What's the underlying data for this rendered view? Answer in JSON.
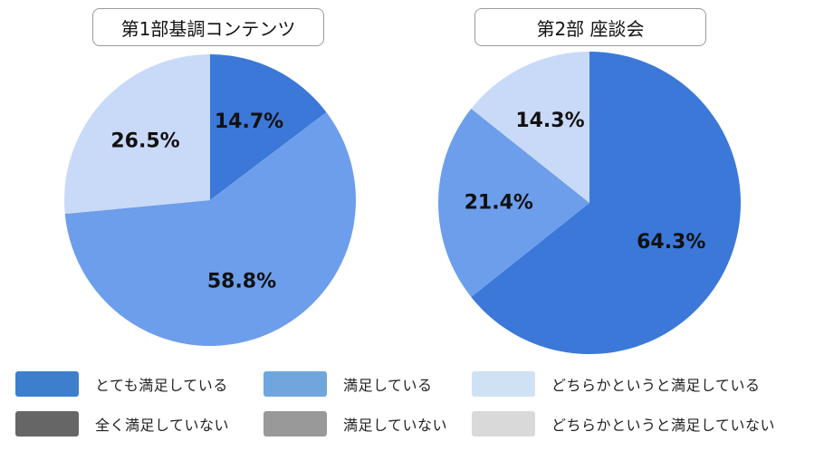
{
  "chart_data": [
    {
      "type": "pie",
      "title": "第1部基調コンテンツ",
      "slices": [
        {
          "label": "とても満足している",
          "value": 14.7,
          "value_label": "14.7%",
          "color": "#3b78d8"
        },
        {
          "label": "満足している",
          "value": 58.8,
          "value_label": "58.8%",
          "color": "#6d9eeb"
        },
        {
          "label": "どちらかというと満足している",
          "value": 26.5,
          "value_label": "26.5%",
          "color": "#c9daf8"
        }
      ]
    },
    {
      "type": "pie",
      "title": "第2部 座談会",
      "slices": [
        {
          "label": "とても満足している",
          "value": 64.3,
          "value_label": "64.3%",
          "color": "#3b78d8"
        },
        {
          "label": "満足している",
          "value": 21.4,
          "value_label": "21.4%",
          "color": "#6d9eeb"
        },
        {
          "label": "どちらかというと満足している",
          "value": 14.3,
          "value_label": "14.3%",
          "color": "#c9daf8"
        }
      ]
    }
  ],
  "legend": [
    {
      "label": "とても満足している",
      "color": "#3d7fcc"
    },
    {
      "label": "満足している",
      "color": "#6fa6de"
    },
    {
      "label": "どちらかというと満足している",
      "color": "#cfe2f3"
    },
    {
      "label": "全く満足していない",
      "color": "#666666"
    },
    {
      "label": "満足していない",
      "color": "#999999"
    },
    {
      "label": "どちらかというと満足していない",
      "color": "#d9d9d9"
    }
  ]
}
